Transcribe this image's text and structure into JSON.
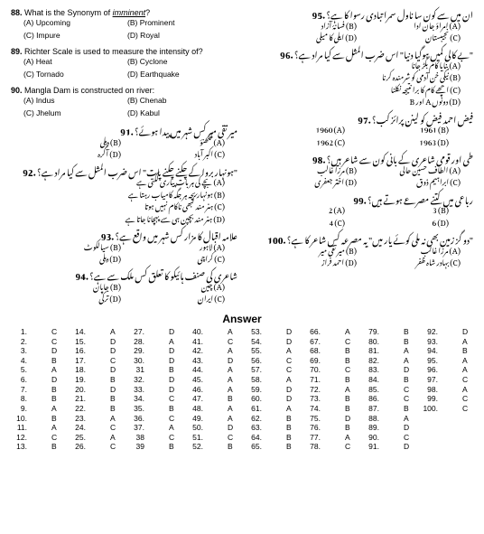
{
  "left": {
    "q88": {
      "num": "88.",
      "text_pre": "What is the Synonym of ",
      "text_u": "imminent",
      "text_post": "?",
      "a": "(A) Upcoming",
      "b": "(B) Prominent",
      "c": "(C) Impure",
      "d": "(D) Royal"
    },
    "q89": {
      "num": "89.",
      "text": "Richter Scale is used to measure the intensity of?",
      "a": "(A) Heat",
      "b": "(B) Cyclone",
      "c": "(C) Tornado",
      "d": "(D) Earthquake"
    },
    "q90": {
      "num": "90.",
      "text": "Mangla Dam is constructed on river:",
      "a": "(A) Indus",
      "b": "(B) Chenab",
      "c": "(C) Jhelum",
      "d": "(D) Kabul"
    },
    "q91": {
      "num": ".91",
      "text": "میر تقی میر کس شہر میں پیدا ہوئے؟",
      "a": "(A) لکھنؤ",
      "b": "(B) دہلی",
      "c": "(C) اکبر آباد",
      "d": "(D) آگرہ"
    },
    "q92": {
      "num": ".92",
      "text": "\"ہونہار بروا کے چکنے چکنے پات\" اس ضرب المثل سے کیا مراد ہے؟",
      "a": "(A) بچے کی ہر بات پیاری لگتی ہے",
      "b": "(B) ہونہار بچہ ہر جگہ کامیاب رہتا ہے",
      "c": "(C) ہنر مند کبھی ناکام نہیں ہوتا",
      "d": "(D) ہنر مند بچپن ہی سے پہچانا جاتا ہے"
    },
    "q93": {
      "num": ".93",
      "text": "علامہ اقبال کا مزار کس شہر میں واقع ہے؟",
      "a": "(A) لاہور",
      "b": "(B) سیالکوٹ",
      "c": "(C) کراچی",
      "d": "(D) دہلی"
    },
    "q94": {
      "num": ".94",
      "text": "شاعری کی صنف ہائیکو کا تعلق کس ملک سے ہے؟",
      "a": "(A) چین",
      "b": "(B) جاپان",
      "c": "(C) ایران",
      "d": "(D) ترکی"
    }
  },
  "right": {
    "q95": {
      "num": ".95",
      "text": "ان میں سے کون سا ناول سمرا تبادی رسوا کا ہے؟",
      "a": "(A) امراؤ جان ادا",
      "b": "(B) فسانۂ آزاد",
      "c": "(C) نجیبستان",
      "d": "(D) ایلی کا میلی"
    },
    "q96": {
      "num": ".96",
      "text": "\"بے کالی کمیں ہوگیا دنیا\" اس ضرب المثل سے کیا مراد ہے؟",
      "a": "(A) بنایا کام بگڑ جانا",
      "b": "(B) نیکی خن آدمی کو شرمندہ کرنا",
      "c": "(C) اچھے کام کا برا نتیجہ نکلنا",
      "d": "(D) دونوں A اور B"
    },
    "q97": {
      "num": ".97",
      "text": "فیض احمد فیض کو لینن پرائز کب؟",
      "a": "1960 (A)",
      "b": "1961 (B)",
      "c": "1962 (C)",
      "d": "1963 (D)"
    },
    "q98": {
      "num": ".98",
      "text": "طی اور قومی شاعری کے بانی کون سے شاعر ہیں؟",
      "a": "(A) الطاف حسین حالی",
      "b": "(B) مرزا غالب",
      "c": "(C) ابراہیم ذوق",
      "d": "(D) اختر جعفری"
    },
    "q99": {
      "num": ".99",
      "text": "رباعی میں کتنے مصرعے ہوتے ہیں؟",
      "a": "2 (A)",
      "b": "3 (B)",
      "c": "4 (C)",
      "d": "6 (D)"
    },
    "q100": {
      "num": ".100",
      "text": "\"دو گز زمین بھی نہ ملی کوئے یار میں\" یہ مصرعہ کس شاعر کا ہے؟",
      "a": "(A) مرزا غالب",
      "b": "(B) میر تقی میر",
      "c": "(C) بہادر شاہ ظفر",
      "d": "(D) احمد فراز"
    }
  },
  "answer_title": "Answer",
  "answers": [
    [
      [
        "1.",
        "C"
      ],
      [
        "2.",
        "C"
      ],
      [
        "3.",
        "D"
      ],
      [
        "4.",
        "B"
      ],
      [
        "5.",
        "A"
      ],
      [
        "6.",
        "D"
      ],
      [
        "7.",
        "B"
      ],
      [
        "8.",
        "B"
      ],
      [
        "9.",
        "A"
      ],
      [
        "10.",
        "B"
      ],
      [
        "11.",
        "A"
      ],
      [
        "12.",
        "C"
      ],
      [
        "13.",
        "B"
      ]
    ],
    [
      [
        "14.",
        "A"
      ],
      [
        "15.",
        "D"
      ],
      [
        "16.",
        "D"
      ],
      [
        "17.",
        "C"
      ],
      [
        "18.",
        "D"
      ],
      [
        "19.",
        "B"
      ],
      [
        "20.",
        "D"
      ],
      [
        "21.",
        "B"
      ],
      [
        "22.",
        "B"
      ],
      [
        "23.",
        "A"
      ],
      [
        "24.",
        "C"
      ],
      [
        "25.",
        "A"
      ],
      [
        "26.",
        "C"
      ]
    ],
    [
      [
        "27.",
        "D"
      ],
      [
        "28.",
        "A"
      ],
      [
        "29.",
        "D"
      ],
      [
        "30.",
        "D"
      ],
      [
        "31",
        "B"
      ],
      [
        "32.",
        "D"
      ],
      [
        "33.",
        "D"
      ],
      [
        "34.",
        "C"
      ],
      [
        "35.",
        "B"
      ],
      [
        "36.",
        "C"
      ],
      [
        "37.",
        "A"
      ],
      [
        "38",
        "C"
      ],
      [
        "39",
        "B"
      ]
    ],
    [
      [
        "40.",
        "A"
      ],
      [
        "41.",
        "C"
      ],
      [
        "42.",
        "A"
      ],
      [
        "43.",
        "D"
      ],
      [
        "44.",
        "A"
      ],
      [
        "45.",
        "A"
      ],
      [
        "46.",
        "A"
      ],
      [
        "47.",
        "B"
      ],
      [
        "48.",
        "A"
      ],
      [
        "49.",
        "A"
      ],
      [
        "50.",
        "D"
      ],
      [
        "51.",
        "C"
      ],
      [
        "52.",
        "B"
      ]
    ],
    [
      [
        "53.",
        "D"
      ],
      [
        "54.",
        "D"
      ],
      [
        "55.",
        "A"
      ],
      [
        "56.",
        "C"
      ],
      [
        "57.",
        "C"
      ],
      [
        "58.",
        "A"
      ],
      [
        "59.",
        "D"
      ],
      [
        "60.",
        "D"
      ],
      [
        "61.",
        "A"
      ],
      [
        "62.",
        "B"
      ],
      [
        "63.",
        "B"
      ],
      [
        "64.",
        "B"
      ],
      [
        "65.",
        "B"
      ]
    ],
    [
      [
        "66.",
        "A"
      ],
      [
        "67.",
        "C"
      ],
      [
        "68.",
        "B"
      ],
      [
        "69.",
        "B"
      ],
      [
        "70.",
        "C"
      ],
      [
        "71.",
        "B"
      ],
      [
        "72.",
        "A"
      ],
      [
        "73.",
        "B"
      ],
      [
        "74.",
        "B"
      ],
      [
        "75.",
        "D"
      ],
      [
        "76.",
        "B"
      ],
      [
        "77.",
        "A"
      ],
      [
        "78.",
        "C"
      ]
    ],
    [
      [
        "79.",
        "B"
      ],
      [
        "80.",
        "B"
      ],
      [
        "81.",
        "A"
      ],
      [
        "82.",
        "A"
      ],
      [
        "83.",
        "D"
      ],
      [
        "84.",
        "B"
      ],
      [
        "85.",
        "C"
      ],
      [
        "86.",
        "C"
      ],
      [
        "87.",
        "B"
      ],
      [
        "88.",
        "A"
      ],
      [
        "89.",
        "D"
      ],
      [
        "90.",
        "C"
      ],
      [
        "91.",
        "D"
      ]
    ],
    [
      [
        "92.",
        "D"
      ],
      [
        "93.",
        "A"
      ],
      [
        "94.",
        "B"
      ],
      [
        "95.",
        "A"
      ],
      [
        "96.",
        "A"
      ],
      [
        "97.",
        "C"
      ],
      [
        "98.",
        "A"
      ],
      [
        "99.",
        "C"
      ],
      [
        "100.",
        "C"
      ]
    ]
  ]
}
